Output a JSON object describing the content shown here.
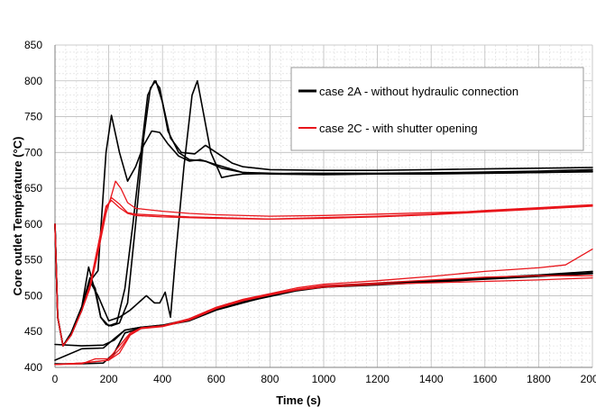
{
  "chart_data": {
    "type": "line",
    "title": "",
    "xlabel": "Time (s)",
    "ylabel": "Core outlet Température (°C)",
    "xlim": [
      0,
      2000
    ],
    "ylim": [
      400,
      850
    ],
    "xticks": [
      0,
      200,
      400,
      600,
      800,
      1000,
      1200,
      1400,
      1600,
      1800,
      2000
    ],
    "xtick_labels": [
      "0",
      "200",
      "400",
      "600",
      "800",
      "1000",
      "1200",
      "1400",
      "1600",
      "1800",
      "2000"
    ],
    "yticks": [
      400,
      450,
      500,
      550,
      600,
      650,
      700,
      750,
      800,
      850
    ],
    "grid": true,
    "legend_position": "top-right",
    "legend": [
      {
        "label": "case 2A - without hydraulic connection",
        "color": "#000000"
      },
      {
        "label": "case 2C - with shutter opening",
        "color": "#e8151b"
      }
    ],
    "series": [
      {
        "group": "case 2A",
        "color": "#000000",
        "points": [
          [
            0,
            600
          ],
          [
            10,
            470
          ],
          [
            30,
            430
          ],
          [
            60,
            445
          ],
          [
            100,
            480
          ],
          [
            130,
            520
          ],
          [
            160,
            535
          ],
          [
            190,
            700
          ],
          [
            210,
            752
          ],
          [
            240,
            700
          ],
          [
            270,
            660
          ],
          [
            300,
            680
          ],
          [
            330,
            710
          ],
          [
            360,
            730
          ],
          [
            390,
            728
          ],
          [
            420,
            712
          ],
          [
            460,
            695
          ],
          [
            500,
            688
          ],
          [
            540,
            690
          ],
          [
            600,
            683
          ],
          [
            700,
            672
          ],
          [
            800,
            670
          ],
          [
            1000,
            669
          ],
          [
            1200,
            670
          ],
          [
            1400,
            670
          ],
          [
            1600,
            671
          ],
          [
            1800,
            672
          ],
          [
            2000,
            673
          ]
        ]
      },
      {
        "group": "case 2A",
        "color": "#000000",
        "points": [
          [
            0,
            600
          ],
          [
            10,
            470
          ],
          [
            30,
            430
          ],
          [
            60,
            448
          ],
          [
            100,
            485
          ],
          [
            125,
            540
          ],
          [
            150,
            505
          ],
          [
            170,
            470
          ],
          [
            200,
            458
          ],
          [
            230,
            462
          ],
          [
            260,
            510
          ],
          [
            290,
            600
          ],
          [
            320,
            700
          ],
          [
            345,
            780
          ],
          [
            370,
            800
          ],
          [
            390,
            790
          ],
          [
            420,
            730
          ],
          [
            460,
            700
          ],
          [
            500,
            690
          ],
          [
            560,
            688
          ],
          [
            620,
            678
          ],
          [
            700,
            672
          ],
          [
            900,
            670
          ],
          [
            1200,
            670
          ],
          [
            1500,
            671
          ],
          [
            1800,
            672
          ],
          [
            2000,
            674
          ]
        ]
      },
      {
        "group": "case 2A",
        "color": "#000000",
        "points": [
          [
            0,
            600
          ],
          [
            10,
            470
          ],
          [
            30,
            430
          ],
          [
            60,
            448
          ],
          [
            100,
            480
          ],
          [
            130,
            520
          ],
          [
            160,
            500
          ],
          [
            200,
            465
          ],
          [
            240,
            470
          ],
          [
            280,
            480
          ],
          [
            310,
            490
          ],
          [
            340,
            500
          ],
          [
            370,
            490
          ],
          [
            390,
            490
          ],
          [
            410,
            505
          ],
          [
            430,
            470
          ],
          [
            450,
            560
          ],
          [
            480,
            680
          ],
          [
            510,
            780
          ],
          [
            530,
            800
          ],
          [
            550,
            760
          ],
          [
            580,
            700
          ],
          [
            620,
            665
          ],
          [
            660,
            668
          ],
          [
            700,
            670
          ],
          [
            900,
            671
          ],
          [
            1200,
            671
          ],
          [
            1500,
            672
          ],
          [
            1800,
            674
          ],
          [
            2000,
            676
          ]
        ]
      },
      {
        "group": "case 2A",
        "color": "#000000",
        "points": [
          [
            0,
            600
          ],
          [
            10,
            470
          ],
          [
            30,
            430
          ],
          [
            60,
            448
          ],
          [
            100,
            485
          ],
          [
            130,
            525
          ],
          [
            150,
            510
          ],
          [
            170,
            470
          ],
          [
            190,
            460
          ],
          [
            210,
            458
          ],
          [
            240,
            462
          ],
          [
            270,
            490
          ],
          [
            300,
            600
          ],
          [
            330,
            720
          ],
          [
            355,
            790
          ],
          [
            375,
            800
          ],
          [
            400,
            770
          ],
          [
            430,
            720
          ],
          [
            470,
            700
          ],
          [
            520,
            698
          ],
          [
            560,
            710
          ],
          [
            600,
            700
          ],
          [
            660,
            685
          ],
          [
            700,
            680
          ],
          [
            800,
            676
          ],
          [
            1000,
            675
          ],
          [
            1200,
            675
          ],
          [
            1400,
            676
          ],
          [
            1600,
            677
          ],
          [
            1800,
            678
          ],
          [
            2000,
            679
          ]
        ]
      },
      {
        "group": "case 2A",
        "color": "#000000",
        "points": [
          [
            0,
            432
          ],
          [
            100,
            430
          ],
          [
            180,
            431
          ],
          [
            220,
            438
          ],
          [
            260,
            452
          ],
          [
            320,
            456
          ],
          [
            400,
            458
          ],
          [
            500,
            465
          ],
          [
            600,
            480
          ],
          [
            700,
            490
          ],
          [
            800,
            500
          ],
          [
            900,
            508
          ],
          [
            1000,
            512
          ],
          [
            1200,
            516
          ],
          [
            1400,
            520
          ],
          [
            1600,
            524
          ],
          [
            1800,
            528
          ],
          [
            2000,
            532
          ]
        ]
      },
      {
        "group": "case 2A",
        "color": "#000000",
        "points": [
          [
            0,
            405
          ],
          [
            100,
            405
          ],
          [
            180,
            406
          ],
          [
            220,
            420
          ],
          [
            260,
            448
          ],
          [
            320,
            455
          ],
          [
            400,
            458
          ],
          [
            500,
            466
          ],
          [
            600,
            481
          ],
          [
            700,
            492
          ],
          [
            800,
            501
          ],
          [
            900,
            508
          ],
          [
            1000,
            513
          ],
          [
            1200,
            517
          ],
          [
            1400,
            521
          ],
          [
            1600,
            525
          ],
          [
            1800,
            529
          ],
          [
            2000,
            534
          ]
        ]
      },
      {
        "group": "case 2A",
        "color": "#000000",
        "points": [
          [
            0,
            410
          ],
          [
            100,
            426
          ],
          [
            180,
            427
          ],
          [
            220,
            440
          ],
          [
            260,
            452
          ],
          [
            320,
            456
          ],
          [
            400,
            459
          ],
          [
            500,
            467
          ],
          [
            600,
            482
          ],
          [
            700,
            491
          ],
          [
            800,
            499
          ],
          [
            900,
            507
          ],
          [
            1000,
            512
          ],
          [
            1200,
            515
          ],
          [
            1400,
            519
          ],
          [
            1600,
            523
          ],
          [
            1800,
            527
          ],
          [
            2000,
            531
          ]
        ]
      },
      {
        "group": "case 2C",
        "color": "#e8151b",
        "points": [
          [
            0,
            600
          ],
          [
            10,
            470
          ],
          [
            30,
            430
          ],
          [
            60,
            445
          ],
          [
            100,
            480
          ],
          [
            130,
            510
          ],
          [
            160,
            560
          ],
          [
            190,
            615
          ],
          [
            210,
            640
          ],
          [
            225,
            660
          ],
          [
            245,
            650
          ],
          [
            270,
            630
          ],
          [
            300,
            622
          ],
          [
            350,
            620
          ],
          [
            400,
            618
          ],
          [
            500,
            615
          ],
          [
            600,
            613
          ],
          [
            800,
            611
          ],
          [
            1000,
            612
          ],
          [
            1200,
            614
          ],
          [
            1400,
            616
          ],
          [
            1600,
            618
          ],
          [
            1800,
            622
          ],
          [
            2000,
            626
          ]
        ]
      },
      {
        "group": "case 2C",
        "color": "#e8151b",
        "points": [
          [
            0,
            600
          ],
          [
            10,
            470
          ],
          [
            30,
            430
          ],
          [
            60,
            445
          ],
          [
            100,
            480
          ],
          [
            130,
            512
          ],
          [
            160,
            565
          ],
          [
            190,
            622
          ],
          [
            210,
            637
          ],
          [
            240,
            628
          ],
          [
            270,
            616
          ],
          [
            300,
            614
          ],
          [
            400,
            612
          ],
          [
            500,
            610
          ],
          [
            600,
            609
          ],
          [
            800,
            607
          ],
          [
            1000,
            608
          ],
          [
            1200,
            610
          ],
          [
            1400,
            613
          ],
          [
            1600,
            617
          ],
          [
            1800,
            621
          ],
          [
            2000,
            625
          ]
        ]
      },
      {
        "group": "case 2C",
        "color": "#e8151b",
        "points": [
          [
            0,
            600
          ],
          [
            10,
            470
          ],
          [
            30,
            430
          ],
          [
            60,
            445
          ],
          [
            100,
            480
          ],
          [
            130,
            515
          ],
          [
            160,
            570
          ],
          [
            190,
            625
          ],
          [
            210,
            633
          ],
          [
            240,
            623
          ],
          [
            270,
            615
          ],
          [
            300,
            612
          ],
          [
            400,
            610
          ],
          [
            500,
            609
          ],
          [
            600,
            608
          ],
          [
            800,
            607
          ],
          [
            1000,
            609
          ],
          [
            1200,
            611
          ],
          [
            1400,
            614
          ],
          [
            1600,
            619
          ],
          [
            1800,
            623
          ],
          [
            2000,
            627
          ]
        ]
      },
      {
        "group": "case 2C",
        "color": "#e8151b",
        "points": [
          [
            0,
            404
          ],
          [
            100,
            405
          ],
          [
            150,
            412
          ],
          [
            200,
            412
          ],
          [
            240,
            430
          ],
          [
            280,
            448
          ],
          [
            320,
            455
          ],
          [
            400,
            458
          ],
          [
            500,
            468
          ],
          [
            600,
            484
          ],
          [
            700,
            495
          ],
          [
            800,
            503
          ],
          [
            900,
            511
          ],
          [
            1000,
            516
          ],
          [
            1200,
            521
          ],
          [
            1400,
            527
          ],
          [
            1600,
            534
          ],
          [
            1800,
            539
          ],
          [
            1900,
            543
          ],
          [
            2000,
            565
          ]
        ]
      },
      {
        "group": "case 2C",
        "color": "#e8151b",
        "points": [
          [
            0,
            404
          ],
          [
            100,
            406
          ],
          [
            200,
            410
          ],
          [
            240,
            425
          ],
          [
            280,
            446
          ],
          [
            320,
            455
          ],
          [
            400,
            458
          ],
          [
            500,
            467
          ],
          [
            600,
            483
          ],
          [
            700,
            494
          ],
          [
            800,
            502
          ],
          [
            900,
            509
          ],
          [
            1000,
            514
          ],
          [
            1200,
            518
          ],
          [
            1400,
            522
          ],
          [
            1600,
            526
          ],
          [
            1800,
            528
          ],
          [
            2000,
            528
          ]
        ]
      },
      {
        "group": "case 2C",
        "color": "#e8151b",
        "points": [
          [
            0,
            404
          ],
          [
            100,
            406
          ],
          [
            200,
            410
          ],
          [
            240,
            420
          ],
          [
            280,
            445
          ],
          [
            320,
            454
          ],
          [
            400,
            457
          ],
          [
            500,
            466
          ],
          [
            600,
            482
          ],
          [
            700,
            493
          ],
          [
            800,
            501
          ],
          [
            900,
            508
          ],
          [
            1000,
            512
          ],
          [
            1200,
            516
          ],
          [
            1400,
            518
          ],
          [
            1600,
            520
          ],
          [
            1800,
            522
          ],
          [
            2000,
            525
          ]
        ]
      }
    ]
  }
}
